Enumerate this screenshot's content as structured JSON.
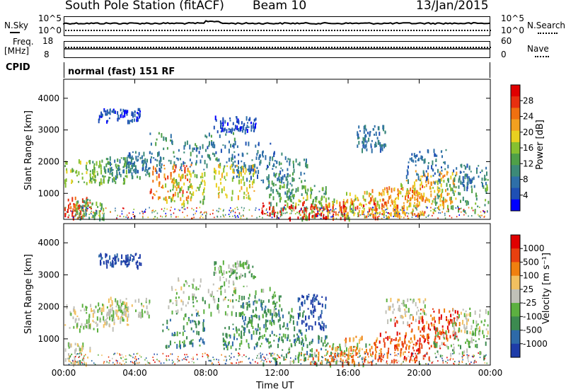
{
  "header": {
    "station": "South Pole Station (fitACF)",
    "beam": "Beam 10",
    "date": "13/Jan/2015"
  },
  "aux_panels": {
    "nsky_label": "N.Sky",
    "nsearch_label": "N.Search",
    "noise_ticks_left": [
      "10^5",
      "10^0"
    ],
    "noise_ticks_right": [
      "10^5",
      "10^0"
    ],
    "freq_label_line1": "Freq.",
    "freq_label_line2": "[MHz]",
    "freq_ticks": [
      "18",
      "8"
    ],
    "nave_label": "Nave",
    "nave_ticks": [
      "60",
      "0"
    ],
    "cpid_label": "CPID",
    "cpid_value": "normal (fast) 151 RF"
  },
  "chart_data": [
    {
      "type": "heatmap",
      "panel": "power",
      "ylabel": "Slant Range [km]",
      "ylim": [
        180,
        4600
      ],
      "yticks": [
        "1000",
        "2000",
        "3000",
        "4000"
      ],
      "xlabel": "Time UT",
      "xticks": [
        "00:00",
        "04:00",
        "08:00",
        "12:00",
        "16:00",
        "20:00",
        "00:00"
      ],
      "colorbar": {
        "label": "Power [dB]",
        "ticks": [
          "28",
          "24",
          "20",
          "16",
          "12",
          "8",
          "4"
        ],
        "colors": [
          "#0000ff",
          "#1e4fb4",
          "#2e6fa8",
          "#3c8a78",
          "#4fa048",
          "#86c030",
          "#e8d020",
          "#f2a020",
          "#f07010",
          "#e83010",
          "#e00000"
        ]
      }
    },
    {
      "type": "heatmap",
      "panel": "velocity",
      "ylabel": "Slant Range [km]",
      "ylim": [
        180,
        4600
      ],
      "yticks": [
        "1000",
        "2000",
        "3000",
        "4000"
      ],
      "xlabel": "Time UT",
      "xticks": [
        "00:00",
        "04:00",
        "08:00",
        "12:00",
        "16:00",
        "20:00",
        "00:00"
      ],
      "colorbar": {
        "label": "Velocity [m s⁻¹]",
        "ticks": [
          "1000",
          "500",
          "100",
          "25",
          "-25",
          "-100",
          "-500",
          "-1000"
        ],
        "colors": [
          "#1e3ca8",
          "#2e6aa8",
          "#3c8a50",
          "#5cb040",
          "#c0c0b8",
          "#f2c060",
          "#f08010",
          "#e84010",
          "#e00000"
        ]
      }
    }
  ]
}
